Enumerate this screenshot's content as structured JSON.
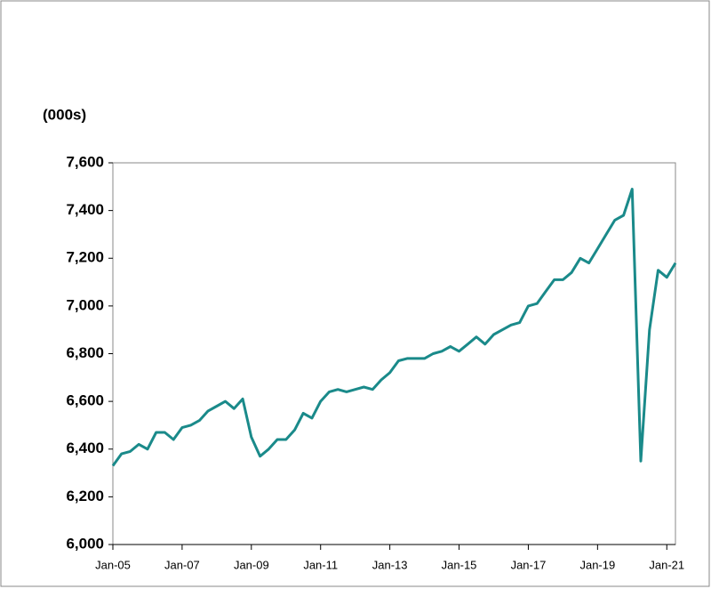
{
  "chart_data": {
    "type": "line",
    "y_label": "(000s)",
    "categories": [
      "Jan-05",
      null,
      null,
      null,
      null,
      null,
      null,
      null,
      "Jan-07",
      null,
      null,
      null,
      null,
      null,
      null,
      null,
      "Jan-09",
      null,
      null,
      null,
      null,
      null,
      null,
      null,
      "Jan-11",
      null,
      null,
      null,
      null,
      null,
      null,
      null,
      "Jan-13",
      null,
      null,
      null,
      null,
      null,
      null,
      null,
      "Jan-15",
      null,
      null,
      null,
      null,
      null,
      null,
      null,
      "Jan-17",
      null,
      null,
      null,
      null,
      null,
      null,
      null,
      "Jan-19",
      null,
      null,
      null,
      null,
      null,
      null,
      null,
      "Jan-21",
      null
    ],
    "values": [
      6330,
      6380,
      6390,
      6420,
      6400,
      6470,
      6470,
      6440,
      6490,
      6500,
      6520,
      6560,
      6580,
      6600,
      6570,
      6610,
      6450,
      6370,
      6400,
      6440,
      6440,
      6480,
      6550,
      6530,
      6600,
      6640,
      6650,
      6640,
      6650,
      6660,
      6650,
      6690,
      6720,
      6770,
      6780,
      6780,
      6780,
      6800,
      6810,
      6830,
      6810,
      6840,
      6870,
      6840,
      6880,
      6900,
      6920,
      6930,
      7000,
      7010,
      7060,
      7110,
      7110,
      7140,
      7200,
      7180,
      7240,
      7300,
      7360,
      7380,
      7490,
      6350,
      6900,
      7150,
      7120,
      7180
    ],
    "color": "#1a8a8a",
    "ylim": [
      6000,
      7600
    ],
    "yticks": [
      {
        "value": 6000,
        "label": "6,000"
      },
      {
        "value": 6200,
        "label": "6,200"
      },
      {
        "value": 6400,
        "label": "6,400"
      },
      {
        "value": 6600,
        "label": "6,600"
      },
      {
        "value": 6800,
        "label": "6,800"
      },
      {
        "value": 7000,
        "label": "7,000"
      },
      {
        "value": 7200,
        "label": "7,200"
      },
      {
        "value": 7400,
        "label": "7,400"
      },
      {
        "value": 7600,
        "label": "7,600"
      }
    ]
  }
}
